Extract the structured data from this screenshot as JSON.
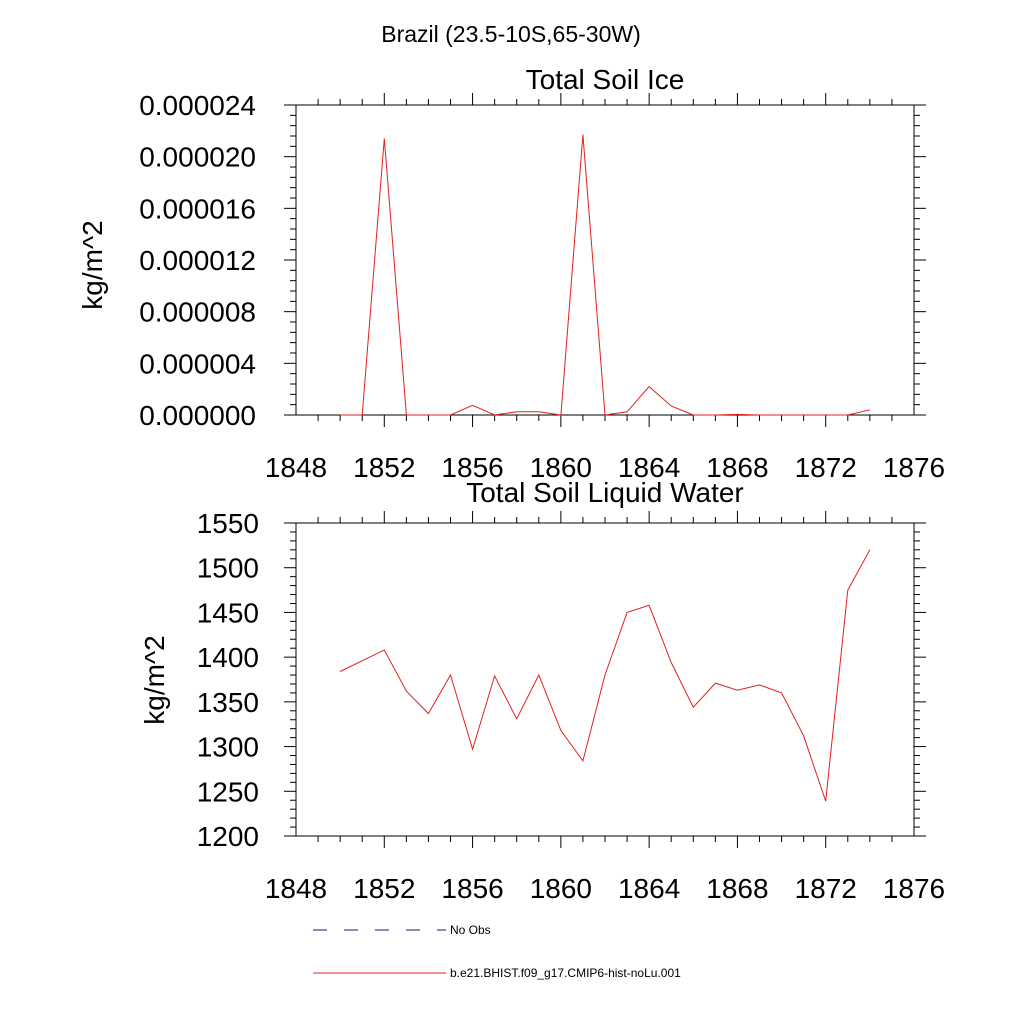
{
  "page_title": "Brazil (23.5-10S,65-30W)",
  "legend": {
    "placement": "bottom-center",
    "entries": [
      {
        "label": "No Obs",
        "style": "dashed",
        "color": "#1a1a6e"
      },
      {
        "label": "b.e21.BHIST.f09_g17.CMIP6-hist-noLu.001",
        "style": "solid",
        "color": "#e0201f"
      }
    ]
  },
  "chart_data": [
    {
      "type": "line",
      "title": "Total Soil Ice",
      "ylabel": "kg/m^2",
      "xlabel": "",
      "xlim": [
        1848,
        1876
      ],
      "ylim": [
        0,
        2.4e-05
      ],
      "xticks": [
        1848,
        1852,
        1856,
        1860,
        1864,
        1868,
        1872,
        1876
      ],
      "xtick_labels": [
        "1848",
        "1852",
        "1856",
        "1860",
        "1864",
        "1868",
        "1872",
        "1876"
      ],
      "yticks": [
        0,
        4e-06,
        8e-06,
        1.2e-05,
        1.6e-05,
        2e-05,
        2.4e-05
      ],
      "ytick_labels": [
        "0.000000",
        "0.000004",
        "0.000008",
        "0.000012",
        "0.000016",
        "0.000020",
        "0.000024"
      ],
      "grid": false,
      "series": [
        {
          "color": "#e0201f",
          "x": [
            1850,
            1851,
            1852,
            1853,
            1854,
            1855,
            1856,
            1857,
            1858,
            1859,
            1860,
            1861,
            1862,
            1863,
            1864,
            1865,
            1866,
            1867,
            1868,
            1869,
            1870,
            1871,
            1872,
            1873,
            1874
          ],
          "values": [
            0,
            0,
            2.14e-05,
            0,
            0,
            0,
            7.5e-07,
            0,
            2.5e-07,
            2.5e-07,
            0,
            2.17e-05,
            0,
            2.5e-07,
            2.2e-06,
            7e-07,
            0,
            0,
            5e-08,
            0,
            0,
            0,
            0,
            0,
            4e-07
          ]
        }
      ]
    },
    {
      "type": "line",
      "title": "Total Soil Liquid Water",
      "ylabel": "kg/m^2",
      "xlabel": "",
      "xlim": [
        1848,
        1876
      ],
      "ylim": [
        1200,
        1550
      ],
      "xticks": [
        1848,
        1852,
        1856,
        1860,
        1864,
        1868,
        1872,
        1876
      ],
      "xtick_labels": [
        "1848",
        "1852",
        "1856",
        "1860",
        "1864",
        "1868",
        "1872",
        "1876"
      ],
      "yticks": [
        1200,
        1250,
        1300,
        1350,
        1400,
        1450,
        1500,
        1550
      ],
      "ytick_labels": [
        "1200",
        "1250",
        "1300",
        "1350",
        "1400",
        "1450",
        "1500",
        "1550"
      ],
      "grid": false,
      "series": [
        {
          "color": "#e0201f",
          "x": [
            1850,
            1852,
            1853,
            1854,
            1855,
            1856,
            1857,
            1858,
            1859,
            1860,
            1861,
            1862,
            1863,
            1864,
            1865,
            1866,
            1867,
            1868,
            1869,
            1870,
            1871,
            1872,
            1873,
            1874
          ],
          "values": [
            1384,
            1408,
            1362,
            1337,
            1380,
            1297,
            1379,
            1331,
            1380,
            1318,
            1284,
            1380,
            1450,
            1458,
            1394,
            1344,
            1371,
            1363,
            1369,
            1360,
            1312,
            1239,
            1475,
            1520
          ]
        }
      ]
    }
  ]
}
